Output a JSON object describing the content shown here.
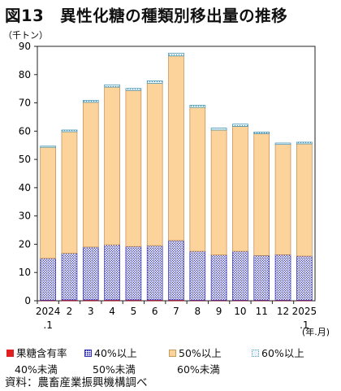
{
  "title": "図13　異性化糖の種類別移出量の推移",
  "source": "資料：農畜産業振興機構調べ",
  "chart_data": {
    "type": "bar",
    "stacked": true,
    "ylabel": "（千トン）",
    "xunit": "(年.月)",
    "ylim": [
      0,
      90
    ],
    "yticks": [
      0,
      10,
      20,
      30,
      40,
      50,
      60,
      70,
      80,
      90
    ],
    "categories": [
      "2024\n.1",
      "2",
      "3",
      "4",
      "5",
      "6",
      "7",
      "8",
      "9",
      "10",
      "11",
      "12",
      "2025\n.1"
    ],
    "grid": false,
    "legend_position": "bottom",
    "series": [
      {
        "name": "果糖含有率",
        "name2": "40%未満",
        "color": "#e02020",
        "values": [
          0.2,
          0.3,
          0.3,
          0.3,
          0.3,
          0.3,
          0.3,
          0.2,
          0.2,
          0.2,
          0.2,
          0.2,
          0.2
        ]
      },
      {
        "name": "40%以上",
        "name2": "50%未満",
        "color": "#3030b8",
        "values": [
          14.8,
          16.5,
          18.7,
          19.5,
          18.9,
          19.2,
          21.0,
          17.3,
          16.0,
          17.3,
          15.8,
          16.1,
          15.6
        ]
      },
      {
        "name": "50%以上",
        "name2": "60%未満",
        "color": "#fbd39b",
        "values": [
          39.3,
          43.0,
          51.2,
          55.8,
          55.2,
          57.4,
          65.3,
          50.9,
          44.2,
          44.2,
          43.1,
          39.0,
          39.7
        ]
      },
      {
        "name": "60%以上",
        "name2": "",
        "color": "#8ec9de",
        "values": [
          0.4,
          0.6,
          0.7,
          0.8,
          0.7,
          0.9,
          1.0,
          0.8,
          0.7,
          0.8,
          0.6,
          0.5,
          0.6
        ]
      }
    ]
  }
}
